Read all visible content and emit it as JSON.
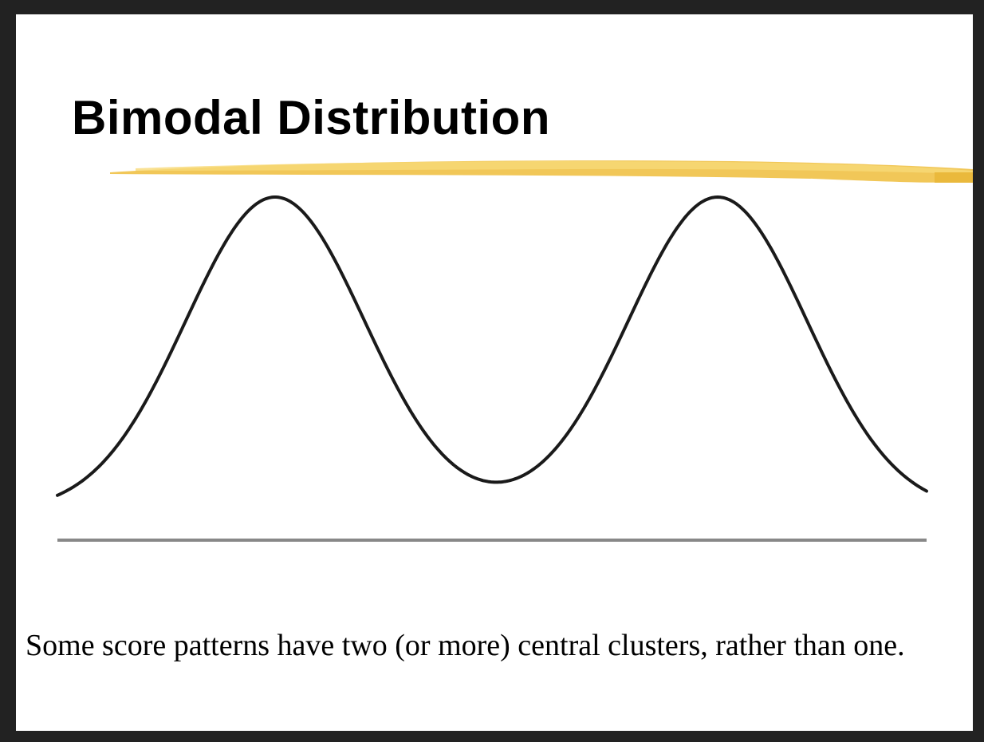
{
  "slide": {
    "title": "Bimodal Distribution",
    "caption": "Some score patterns have two (or more) central clusters, rather than one.",
    "accent_color": "#f2c84b",
    "curve_color": "#1a1a1a",
    "baseline_color": "#888888"
  }
}
